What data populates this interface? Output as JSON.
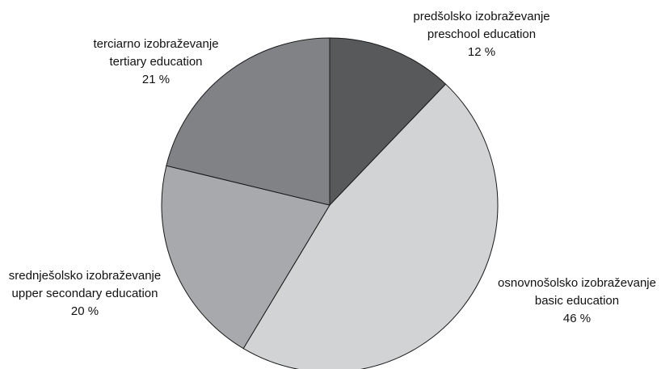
{
  "chart_data": {
    "type": "pie",
    "title": "",
    "slices": [
      {
        "label_sl": "predšolsko izobraževanje",
        "label_en": "preschool education",
        "value": 12,
        "value_label": "12 %",
        "color": "#58595b"
      },
      {
        "label_sl": "osnovnošolsko izobraževanje",
        "label_en": "basic education",
        "value": 46,
        "value_label": "46 %",
        "color": "#d2d3d5"
      },
      {
        "label_sl": "srednješolsko izobraževanje",
        "label_en": "upper secondary education",
        "value": 20,
        "value_label": "20 %",
        "color": "#a8a9ac"
      },
      {
        "label_sl": "terciarno izobraževanje",
        "label_en": "tertiary education",
        "value": 21,
        "value_label": "21 %",
        "color": "#808285"
      }
    ]
  }
}
